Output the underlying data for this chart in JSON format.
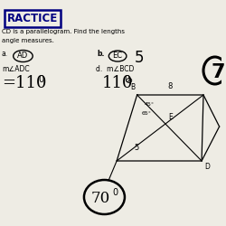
{
  "title_box_text": "RACTICE",
  "subtitle1": "CD is a parallelogram. Find the lengths",
  "subtitle2": "angle measures.",
  "label_a_text": "AD",
  "label_b_val": "EC",
  "label_b_ans": "5",
  "label_c_text": "m∠ADC",
  "label_c_ans": "=110",
  "label_c_deg": "0",
  "label_d_text": "d.  m∠BCD",
  "label_d_ans": "110",
  "label_d_deg": "0",
  "angle1": "45°",
  "angle2": "65°",
  "side_label": "8",
  "diag_label": "5",
  "E_label": "E",
  "B_label": "B",
  "D_label": "D",
  "circled_70": "70",
  "circled_70_deg": "0",
  "circled_7_right": "7",
  "bg_color": "#eeece4"
}
